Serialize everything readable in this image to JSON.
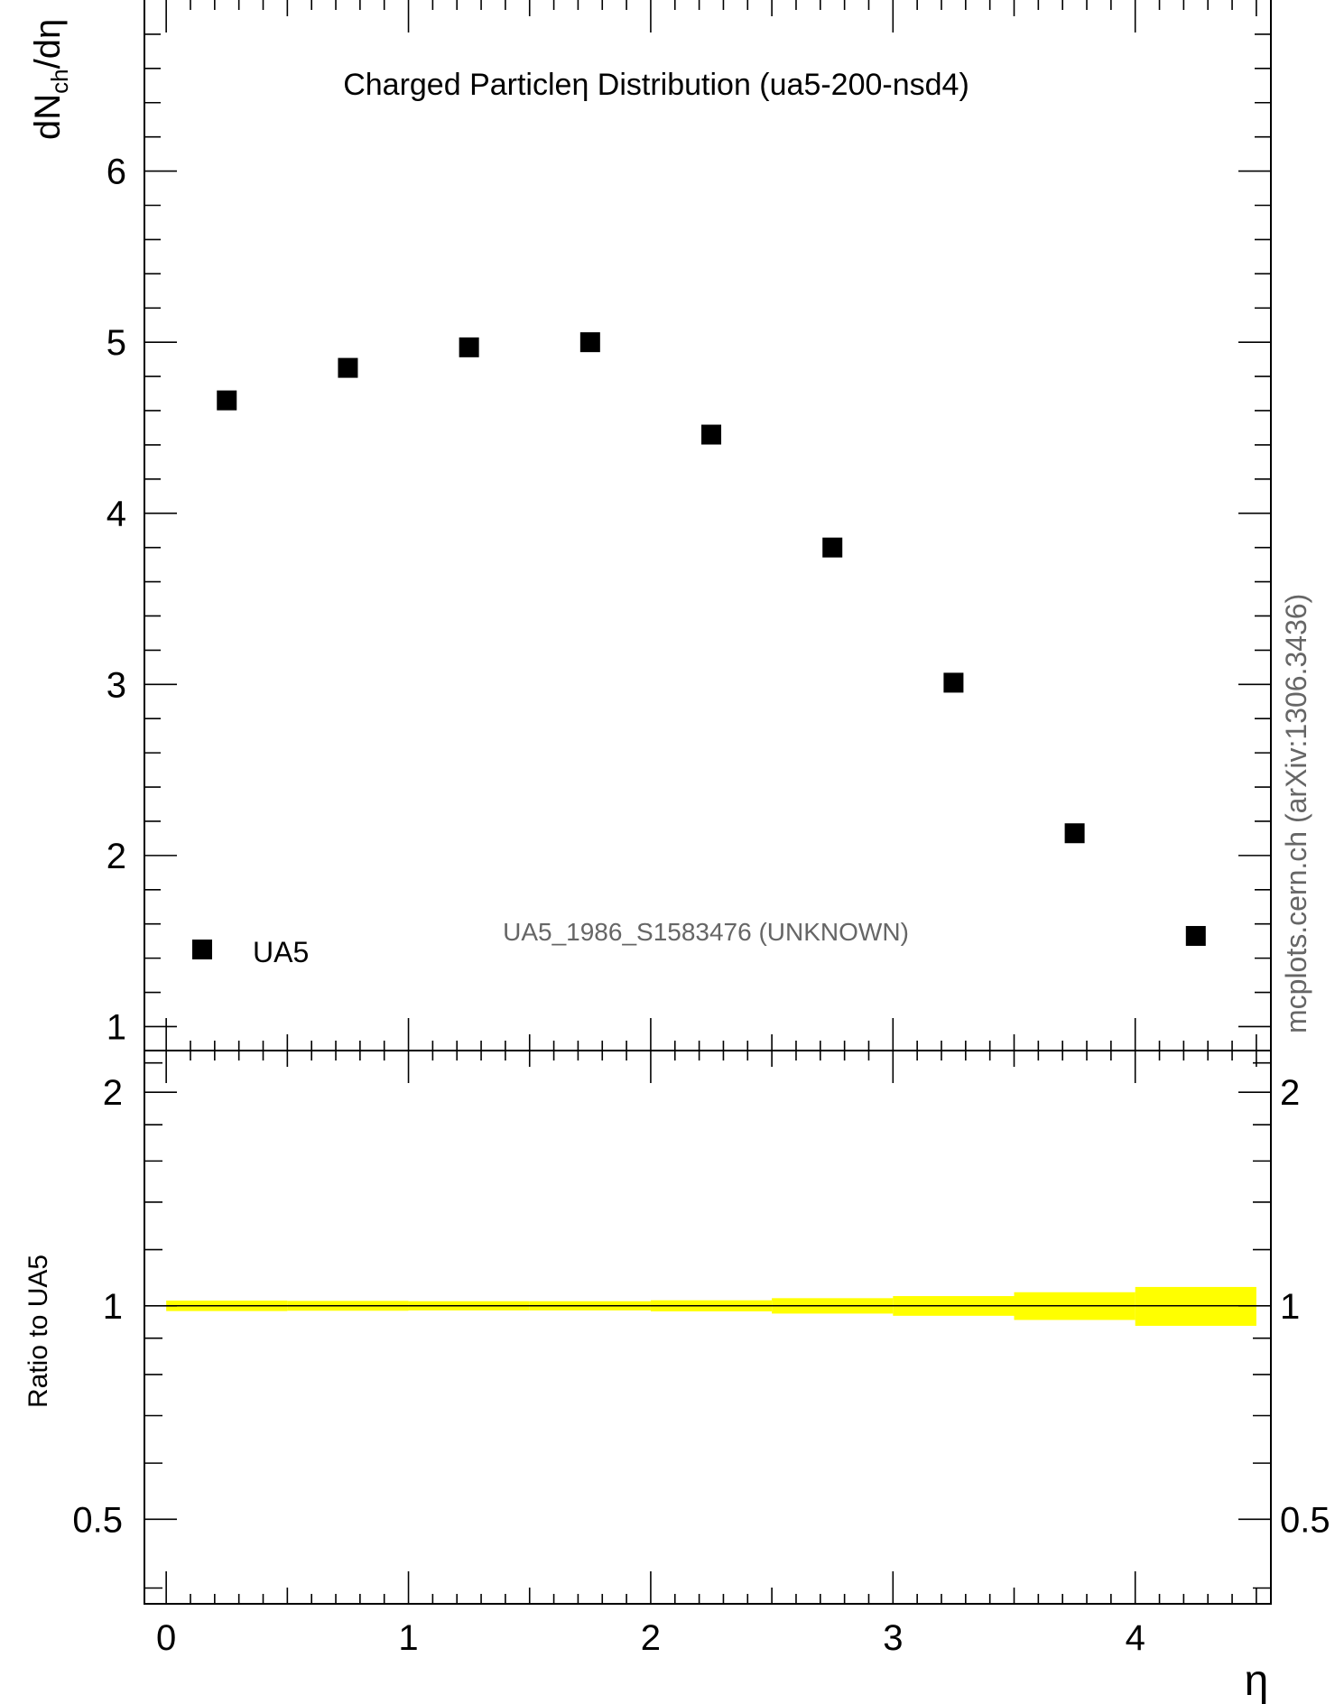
{
  "chart_data": [
    {
      "type": "scatter",
      "panel": "main",
      "title": "Charged Particleη Distribution (ua5-200-nsd4)",
      "ylabel": "dN",
      "ylabel_sub": "ch",
      "ylabel_tail": "/dη",
      "xlim": [
        -0.09,
        4.56
      ],
      "ylim": [
        0.86,
        7.0
      ],
      "yticks": [
        1,
        2,
        3,
        4,
        5,
        6
      ],
      "series": [
        {
          "name": "UA5",
          "x": [
            0.25,
            0.75,
            1.25,
            1.75,
            2.25,
            2.75,
            3.25,
            3.75,
            4.25
          ],
          "y": [
            4.66,
            4.85,
            4.97,
            5.0,
            4.46,
            3.8,
            3.01,
            2.13,
            1.53
          ]
        }
      ],
      "legend": {
        "label": "UA5",
        "placement": "bottom-left"
      },
      "annotation": "UA5_1986_S1583476 (UNKNOWN)",
      "grid": false
    },
    {
      "type": "area",
      "panel": "ratio",
      "ylabel": "Ratio to UA5",
      "xlabel": "η",
      "xlim": [
        -0.09,
        4.56
      ],
      "ylim": [
        0.38,
        2.29
      ],
      "yticks": [
        0.5,
        1,
        2
      ],
      "ytick_labels": [
        "0.5",
        "1",
        "2"
      ],
      "xticks": [
        0,
        1,
        2,
        3,
        4
      ],
      "band_bins": [
        {
          "x0": 0.0,
          "x1": 0.5,
          "low": 0.983,
          "high": 1.017
        },
        {
          "x0": 0.5,
          "x1": 1.0,
          "low": 0.984,
          "high": 1.016
        },
        {
          "x0": 1.0,
          "x1": 1.5,
          "low": 0.985,
          "high": 1.015
        },
        {
          "x0": 1.5,
          "x1": 2.0,
          "low": 0.985,
          "high": 1.015
        },
        {
          "x0": 2.0,
          "x1": 2.5,
          "low": 0.982,
          "high": 1.018
        },
        {
          "x0": 2.5,
          "x1": 3.0,
          "low": 0.975,
          "high": 1.025
        },
        {
          "x0": 3.0,
          "x1": 3.5,
          "low": 0.968,
          "high": 1.032
        },
        {
          "x0": 3.5,
          "x1": 4.0,
          "low": 0.955,
          "high": 1.045
        },
        {
          "x0": 4.0,
          "x1": 4.5,
          "low": 0.937,
          "high": 1.063
        }
      ],
      "band_color": "#ffff00",
      "reference_line": 1,
      "grid": false
    }
  ],
  "side_label": "mcplots.cern.ch (arXiv:1306.3436)"
}
